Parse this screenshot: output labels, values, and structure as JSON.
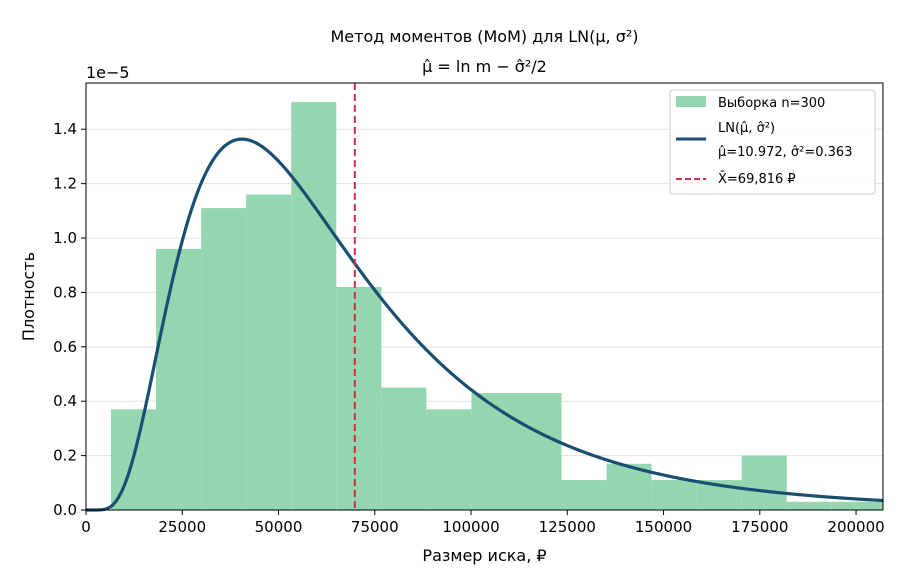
{
  "chart_data": {
    "type": "histogram+line",
    "title_line1": "Метод моментов (MoM) для LN(μ, σ²)",
    "title_line2": "μ̂ = ln m − σ̂²/2",
    "xlabel": "Размер иска, ₽",
    "ylabel": "Плотность",
    "y_offset_label": "1e−5",
    "xlim": [
      0,
      207000
    ],
    "ylim": [
      0,
      1.57
    ],
    "x_ticks": [
      0,
      25000,
      50000,
      75000,
      100000,
      125000,
      150000,
      175000,
      200000
    ],
    "x_tick_labels": [
      "0",
      "25000",
      "50000",
      "75000",
      "100000",
      "125000",
      "150000",
      "175000",
      "200000"
    ],
    "y_ticks": [
      0,
      0.2,
      0.4,
      0.6,
      0.8,
      1.0,
      1.2,
      1.4
    ],
    "y_tick_labels": [
      "0.0",
      "0.2",
      "0.4",
      "0.6",
      "0.8",
      "1.0",
      "1.2",
      "1.4"
    ],
    "grid": "horizontal",
    "legend_position": "top-right",
    "histogram": {
      "name": "Выборка n=300",
      "color": "#93d6af",
      "bin_edges": [
        6500,
        18200,
        29900,
        41600,
        53300,
        65000,
        76700,
        88400,
        100100,
        111800,
        123500,
        135200,
        146900,
        158600,
        170300,
        182000,
        193700,
        207000
      ],
      "densities": [
        0.37,
        0.96,
        1.11,
        1.16,
        1.5,
        0.82,
        0.45,
        0.37,
        0.43,
        0.43,
        0.11,
        0.17,
        0.11,
        0.11,
        0.2,
        0.03,
        0.03
      ]
    },
    "pdf_curve": {
      "legend_line1": "LN(μ̂, σ̂²)",
      "legend_line2": "μ̂=10.972, σ̂²=0.363",
      "mu": 10.972,
      "sigma2": 0.363,
      "color": "#1a4e72"
    },
    "mean_line": {
      "name": "X̄=69,816 ₽",
      "value": 69816,
      "color": "#d62b4a"
    }
  }
}
